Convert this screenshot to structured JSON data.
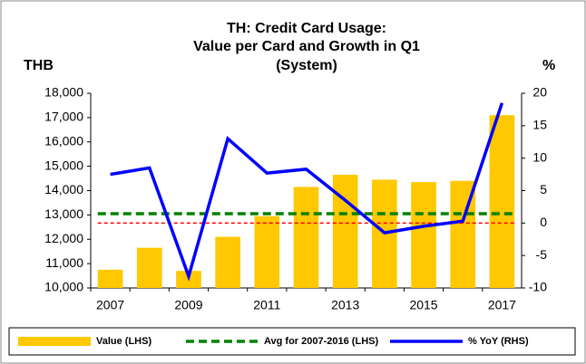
{
  "chart_data": {
    "type": "bar_line",
    "title": [
      "TH: Credit Card Usage:",
      "Value per Card and Growth in Q1",
      "(System)"
    ],
    "y_label": "THB",
    "y2_label": "%",
    "categories": [
      "2007",
      null,
      "2009",
      null,
      "2011",
      null,
      "2013",
      null,
      "2015",
      null,
      "2017"
    ],
    "series": [
      {
        "name": "Value (LHS)",
        "type": "bar",
        "color": "#ffc800",
        "axis": "y",
        "values": [
          10750,
          11650,
          10700,
          12100,
          12950,
          14150,
          14650,
          14450,
          14350,
          14400,
          17100
        ]
      },
      {
        "name": "Avg for 2007-2016 (LHS)",
        "type": "hline",
        "color": "#008000",
        "axis": "y",
        "value": 13050
      },
      {
        "name": "% YoY (RHS)",
        "type": "line",
        "color": "#0000ff",
        "axis": "y2",
        "values": [
          7.5,
          8.5,
          -8.2,
          13,
          7.7,
          8.3,
          3.5,
          -1.5,
          -0.5,
          0.3,
          18.5
        ]
      }
    ],
    "reference_lines": [
      {
        "axis": "y2",
        "value": 0,
        "color": "#ff0000"
      }
    ],
    "ylim": [
      10000,
      18000
    ],
    "yticks": [
      {
        "value": 10000,
        "label": "10,000"
      },
      {
        "value": 11000,
        "label": "11,000"
      },
      {
        "value": 12000,
        "label": "12,000"
      },
      {
        "value": 13000,
        "label": "13,000"
      },
      {
        "value": 14000,
        "label": "14,000"
      },
      {
        "value": 15000,
        "label": "15,000"
      },
      {
        "value": 16000,
        "label": "16,000"
      },
      {
        "value": 17000,
        "label": "17,000"
      },
      {
        "value": 18000,
        "label": "18,000"
      }
    ],
    "y2lim": [
      -10,
      20
    ],
    "y2ticks": [
      -10,
      -5,
      0,
      5,
      10,
      15,
      20
    ],
    "legend": "bottom"
  }
}
